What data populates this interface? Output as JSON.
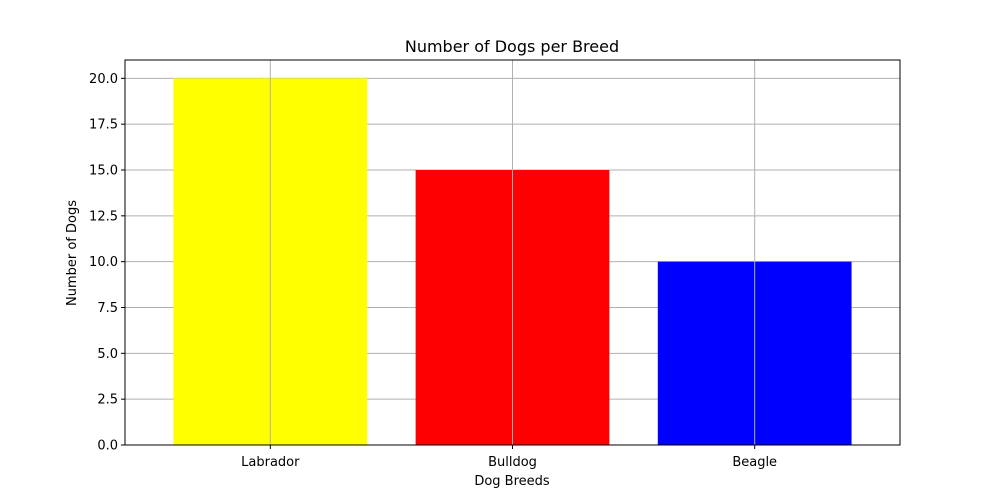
{
  "chart_data": {
    "type": "bar",
    "title": "Number of Dogs per Breed",
    "xlabel": "Dog Breeds",
    "ylabel": "Number of Dogs",
    "categories": [
      "Labrador",
      "Bulldog",
      "Beagle"
    ],
    "values": [
      20,
      15,
      10
    ],
    "colors": [
      "#ffff00",
      "#ff0000",
      "#0000ff"
    ],
    "ylim": [
      0,
      21
    ],
    "yticks": [
      0.0,
      2.5,
      5.0,
      7.5,
      10.0,
      12.5,
      15.0,
      17.5,
      20.0
    ],
    "ytick_labels": [
      "0.0",
      "2.5",
      "5.0",
      "7.5",
      "10.0",
      "12.5",
      "15.0",
      "17.5",
      "20.0"
    ],
    "grid": true,
    "grid_color": "#b0b0b0"
  }
}
